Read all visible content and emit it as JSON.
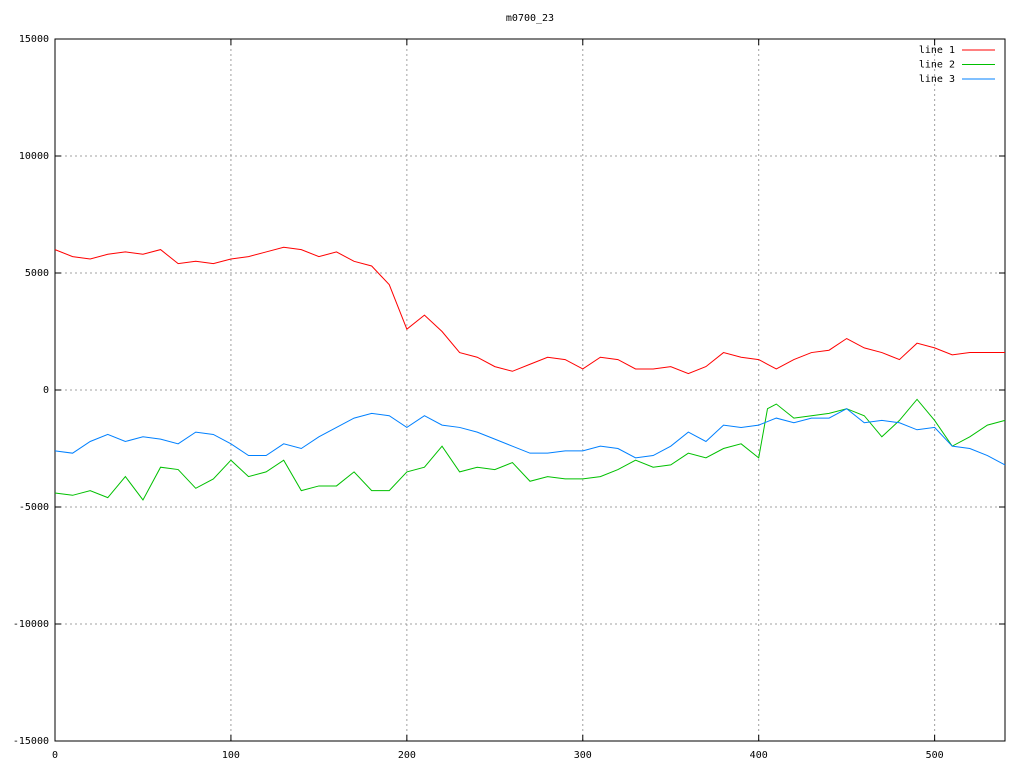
{
  "chart_data": {
    "type": "line",
    "title": "m0700_23",
    "x": [
      0,
      10,
      20,
      30,
      40,
      50,
      60,
      70,
      80,
      90,
      100,
      110,
      120,
      130,
      140,
      150,
      160,
      170,
      180,
      190,
      200,
      210,
      220,
      230,
      240,
      250,
      260,
      270,
      280,
      290,
      300,
      310,
      320,
      330,
      340,
      350,
      360,
      370,
      380,
      390,
      400,
      405,
      410,
      420,
      430,
      440,
      450,
      460,
      470,
      480,
      490,
      500,
      510,
      520,
      530,
      540
    ],
    "series": [
      {
        "name": "line 1",
        "color": "#ff0000",
        "values": [
          6000,
          5700,
          5600,
          5800,
          5900,
          5800,
          6000,
          5400,
          5500,
          5400,
          5600,
          5700,
          5900,
          6100,
          6000,
          5700,
          5900,
          5500,
          5300,
          4500,
          2600,
          3200,
          2500,
          1600,
          1400,
          1000,
          800,
          1100,
          1400,
          1300,
          900,
          1400,
          1300,
          900,
          900,
          1000,
          700,
          1000,
          1600,
          1400,
          1300,
          1100,
          900,
          1300,
          1600,
          1700,
          2200,
          1800,
          1600,
          1300,
          2000,
          1800,
          1500,
          1600,
          1600,
          1600
        ]
      },
      {
        "name": "line 2",
        "color": "#00c000",
        "values": [
          -4400,
          -4500,
          -4300,
          -4600,
          -3700,
          -4700,
          -3300,
          -3400,
          -4200,
          -3800,
          -3000,
          -3700,
          -3500,
          -3000,
          -4300,
          -4100,
          -4100,
          -3500,
          -4300,
          -4300,
          -3500,
          -3300,
          -2400,
          -3500,
          -3300,
          -3400,
          -3100,
          -3900,
          -3700,
          -3800,
          -3800,
          -3700,
          -3400,
          -3000,
          -3300,
          -3200,
          -2700,
          -2900,
          -2500,
          -2300,
          -2900,
          -800,
          -600,
          -1200,
          -1100,
          -1000,
          -800,
          -1100,
          -2000,
          -1300,
          -400,
          -1300,
          -2400,
          -2000,
          -1500,
          -1300
        ]
      },
      {
        "name": "line 3",
        "color": "#0080ff",
        "values": [
          -2600,
          -2700,
          -2200,
          -1900,
          -2200,
          -2000,
          -2100,
          -2300,
          -1800,
          -1900,
          -2300,
          -2800,
          -2800,
          -2300,
          -2500,
          -2000,
          -1600,
          -1200,
          -1000,
          -1100,
          -1600,
          -1100,
          -1500,
          -1600,
          -1800,
          -2100,
          -2400,
          -2700,
          -2700,
          -2600,
          -2600,
          -2400,
          -2500,
          -2900,
          -2800,
          -2400,
          -1800,
          -2200,
          -1500,
          -1600,
          -1500,
          -1350,
          -1200,
          -1400,
          -1200,
          -1200,
          -800,
          -1400,
          -1300,
          -1400,
          -1700,
          -1600,
          -2400,
          -2500,
          -2800,
          -3200
        ]
      }
    ],
    "xlim": [
      0,
      540
    ],
    "ylim": [
      -15000,
      15000
    ],
    "xticks": [
      0,
      100,
      200,
      300,
      400,
      500
    ],
    "yticks": [
      -15000,
      -10000,
      -5000,
      0,
      5000,
      10000,
      15000
    ],
    "grid": true,
    "legend": "top-right"
  }
}
